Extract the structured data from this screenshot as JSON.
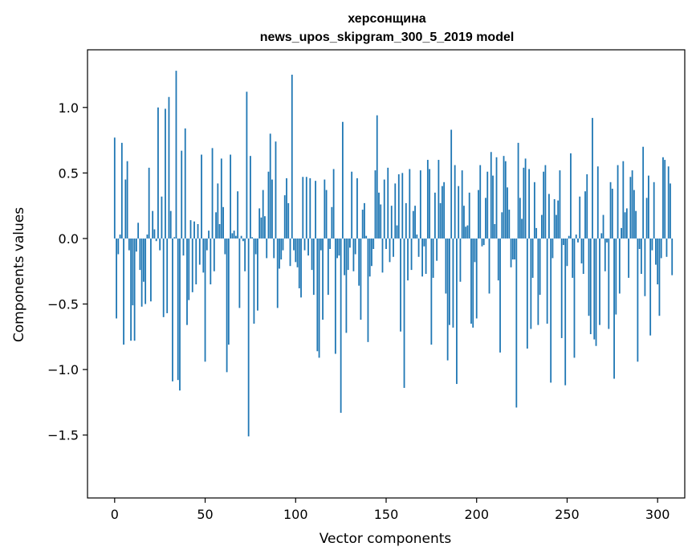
{
  "chart_data": {
    "type": "bar",
    "title": "херсонщина",
    "subtitle": "news_upos_skipgram_300_5_2019 model",
    "xlabel": "Vector components",
    "ylabel": "Components values",
    "xlim": [
      -15,
      315
    ],
    "ylim": [
      -1.98,
      1.44
    ],
    "x_ticks": [
      0,
      50,
      100,
      150,
      200,
      250,
      300
    ],
    "y_ticks": [
      1.0,
      0.5,
      0.0,
      -0.5,
      -1.0,
      -1.5
    ],
    "y_tick_labels": [
      "1.0",
      "0.5",
      "0.0",
      "−0.5",
      "−1.0",
      "−1.5"
    ],
    "grid": false,
    "color": "#1f77b4",
    "values": [
      0.77,
      -0.61,
      -0.12,
      0.03,
      0.73,
      -0.81,
      0.45,
      0.59,
      -0.09,
      -0.78,
      -0.51,
      -0.78,
      -0.1,
      0.12,
      -0.24,
      -0.52,
      -0.33,
      -0.5,
      0.03,
      0.54,
      -0.48,
      0.21,
      0.07,
      -0.02,
      1.0,
      -0.09,
      0.32,
      -0.6,
      0.99,
      -0.57,
      1.08,
      0.21,
      -1.09,
      0.01,
      1.28,
      -1.08,
      -1.16,
      0.67,
      -0.13,
      0.84,
      -0.66,
      -0.47,
      0.14,
      -0.41,
      0.13,
      -0.35,
      0.11,
      -0.2,
      0.64,
      -0.26,
      -0.94,
      -0.09,
      0.06,
      -0.35,
      0.69,
      -0.25,
      0.2,
      0.42,
      0.11,
      0.61,
      0.24,
      -0.12,
      -1.02,
      -0.81,
      0.64,
      0.04,
      0.06,
      0.02,
      0.36,
      -0.53,
      0.02,
      -0.02,
      -0.25,
      1.12,
      -1.51,
      0.63,
      0.01,
      -0.65,
      -0.12,
      -0.55,
      0.23,
      0.16,
      0.37,
      0.17,
      -0.15,
      0.51,
      0.8,
      0.45,
      -0.15,
      0.74,
      -0.53,
      -0.23,
      -0.16,
      -0.09,
      0.33,
      0.46,
      0.27,
      -0.21,
      1.25,
      -0.09,
      -0.18,
      -0.22,
      -0.38,
      -0.45,
      0.47,
      -0.09,
      0.47,
      -0.13,
      0.46,
      -0.24,
      -0.43,
      0.44,
      -0.86,
      -0.91,
      -0.09,
      -0.62,
      0.45,
      0.37,
      -0.43,
      -0.08,
      0.24,
      0.53,
      -0.88,
      -0.15,
      -0.13,
      -1.33,
      0.89,
      -0.28,
      -0.72,
      -0.24,
      -0.07,
      0.51,
      -0.25,
      -0.12,
      0.46,
      -0.36,
      -0.62,
      0.22,
      0.27,
      0.02,
      -0.79,
      -0.29,
      -0.21,
      -0.08,
      0.52,
      0.94,
      0.35,
      0.26,
      -0.26,
      0.45,
      -0.08,
      0.54,
      -0.18,
      0.25,
      -0.14,
      0.42,
      0.1,
      0.49,
      -0.71,
      0.5,
      -1.14,
      0.27,
      -0.32,
      0.53,
      -0.24,
      0.21,
      0.25,
      0.03,
      -0.14,
      0.52,
      -0.29,
      -0.06,
      -0.27,
      0.6,
      0.53,
      -0.81,
      -0.3,
      0.35,
      -0.17,
      0.6,
      0.27,
      0.4,
      0.43,
      -0.42,
      -0.93,
      -0.66,
      0.83,
      -0.68,
      0.56,
      -1.11,
      0.4,
      -0.33,
      0.52,
      0.25,
      0.09,
      0.1,
      0.35,
      -0.65,
      -0.68,
      -0.18,
      -0.61,
      0.37,
      0.56,
      -0.06,
      -0.05,
      0.31,
      0.51,
      -0.42,
      0.66,
      0.48,
      0.11,
      0.62,
      -0.32,
      -0.87,
      0.2,
      0.63,
      0.59,
      0.39,
      0.22,
      -0.22,
      -0.16,
      -0.16,
      -1.29,
      0.73,
      0.31,
      0.15,
      0.54,
      0.61,
      -0.84,
      0.53,
      -0.69,
      -0.3,
      0.43,
      0.08,
      -0.66,
      -0.43,
      0.18,
      0.51,
      0.56,
      -0.65,
      0.34,
      -1.1,
      -0.15,
      0.3,
      0.18,
      0.29,
      0.52,
      -0.76,
      -0.05,
      -1.12,
      -0.21,
      0.02,
      0.65,
      -0.3,
      -0.91,
      0.03,
      -0.03,
      0.32,
      -0.19,
      -0.27,
      0.36,
      0.49,
      -0.59,
      -0.73,
      0.92,
      -0.77,
      -0.82,
      0.55,
      -0.66,
      0.04,
      0.18,
      -0.25,
      -0.03,
      -0.69,
      0.43,
      0.38,
      -1.07,
      -0.58,
      0.56,
      -0.42,
      0.08,
      0.59,
      0.2,
      0.23,
      -0.3,
      0.47,
      0.52,
      0.37,
      0.21,
      -0.94,
      -0.08,
      -0.27,
      0.7,
      -0.44,
      0.31,
      0.48,
      -0.74,
      -0.09,
      0.43,
      -0.2,
      -0.35,
      -0.59,
      -0.15,
      0.62,
      0.6,
      -0.14,
      0.55,
      0.42,
      -0.28
    ]
  }
}
